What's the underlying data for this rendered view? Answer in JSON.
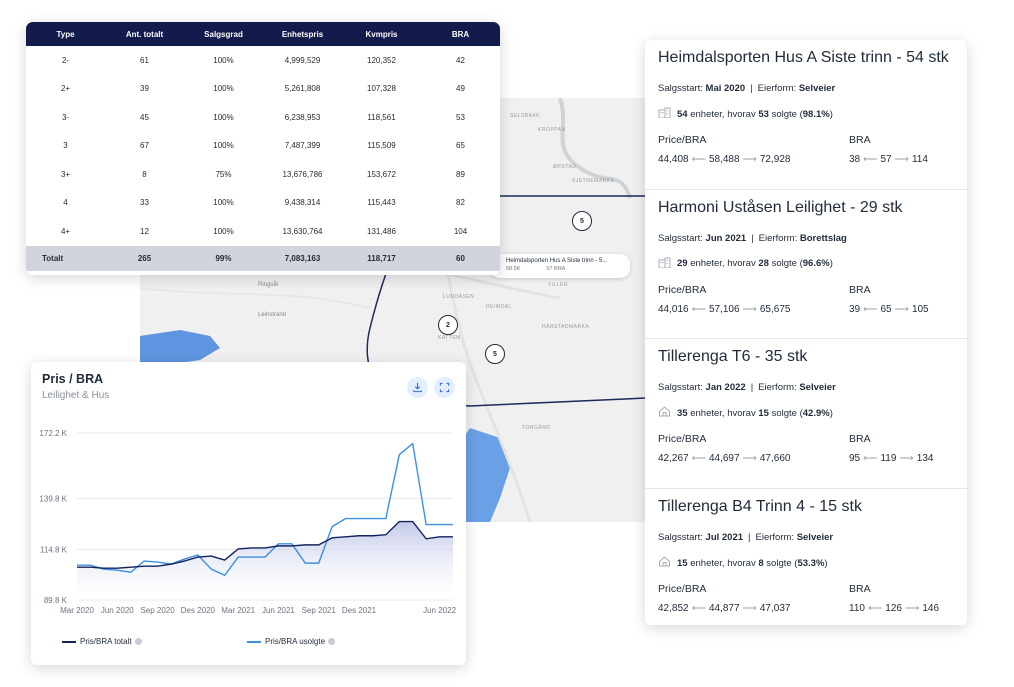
{
  "table": {
    "headers": [
      "Type",
      "Ant. totalt",
      "Salgsgrad",
      "Enhetspris",
      "Kvmpris",
      "BRA"
    ],
    "rows": [
      [
        "2-",
        "61",
        "100%",
        "4,999,529",
        "120,352",
        "42"
      ],
      [
        "2+",
        "39",
        "100%",
        "5,261,808",
        "107,328",
        "49"
      ],
      [
        "3-",
        "45",
        "100%",
        "6,238,953",
        "118,561",
        "53"
      ],
      [
        "3",
        "67",
        "100%",
        "7,487,399",
        "115,509",
        "65"
      ],
      [
        "3+",
        "8",
        "75%",
        "13,676,786",
        "153,672",
        "89"
      ],
      [
        "4",
        "33",
        "100%",
        "9,438,314",
        "115,443",
        "82"
      ],
      [
        "4+",
        "12",
        "100%",
        "13,630,764",
        "131,486",
        "104"
      ]
    ],
    "total": [
      "Totalt",
      "265",
      "99%",
      "7,083,163",
      "118,717",
      "60"
    ]
  },
  "map": {
    "labels": [
      "SELSBAKK",
      "KROPPAN",
      "ØRSTAD",
      "SJETNEMARKA",
      "LUNDÅSEN",
      "HEIMDAL",
      "TILLER",
      "HÅRSTADMARKA",
      "KATTEM",
      "TORGÅRD"
    ],
    "place_labels": [
      "Ringvål",
      "Leinstrand"
    ],
    "clusters": [
      "5",
      "2",
      "5"
    ],
    "popup": {
      "title": "Heimdalsporten Hus A Siste trinn - 5...",
      "price": "58.5K",
      "bra": "57 BRA"
    }
  },
  "chart": {
    "title": "Pris / BRA",
    "subtitle": "Leilighet & Hus",
    "legend": [
      "Pris/BRA totalt",
      "Pris/BRA usolgte"
    ],
    "colors": {
      "total": "#15235e",
      "unsold": "#3a8fe0",
      "fill_top": "#b8bfe4"
    }
  },
  "chart_data": {
    "type": "line",
    "y_ticks": [
      "172.2 K",
      "139.8 K",
      "114.8 K",
      "89.8 K"
    ],
    "y_tick_values": [
      172.2,
      139.8,
      114.8,
      89.8
    ],
    "ylim": [
      89.8,
      172.2
    ],
    "x_ticks": [
      "Mar 2020",
      "Jun 2020",
      "Sep 2020",
      "Des 2020",
      "Mar 2021",
      "Jun 2021",
      "Sep 2021",
      "Des 2021",
      "Jun 2022"
    ],
    "x": [
      "2020-03",
      "2020-04",
      "2020-05",
      "2020-06",
      "2020-07",
      "2020-08",
      "2020-09",
      "2020-10",
      "2020-11",
      "2020-12",
      "2021-01",
      "2021-02",
      "2021-03",
      "2021-04",
      "2021-05",
      "2021-06",
      "2021-07",
      "2021-08",
      "2021-09",
      "2021-10",
      "2021-11",
      "2021-12",
      "2022-01",
      "2022-02",
      "2022-03",
      "2022-04",
      "2022-05",
      "2022-06",
      "2022-07"
    ],
    "series": [
      {
        "name": "Pris/BRA totalt",
        "values": [
          106.0,
          106.0,
          105.5,
          105.5,
          106.0,
          106.5,
          106.5,
          107.5,
          109.0,
          111.0,
          111.5,
          109.5,
          115.0,
          115.5,
          115.5,
          116.5,
          116.5,
          117.0,
          117.0,
          120.5,
          121.0,
          121.5,
          121.5,
          122.0,
          128.5,
          128.5,
          120.0,
          121.0,
          121.0
        ]
      },
      {
        "name": "Pris/BRA usolgte",
        "values": [
          107.0,
          107.0,
          105.0,
          104.5,
          103.5,
          109.0,
          108.5,
          107.5,
          110.0,
          112.0,
          105.0,
          102.0,
          111.0,
          111.0,
          111.0,
          117.5,
          117.5,
          108.0,
          108.0,
          126.0,
          130.0,
          130.0,
          130.0,
          130.0,
          161.5,
          167.0,
          127.0,
          127.0,
          127.0
        ]
      }
    ]
  },
  "projects": [
    {
      "title": "Heimdalsporten Hus A Siste trinn - 54 stk",
      "salgsstart_label": "Salgsstart:",
      "salgsstart": "Mai 2020",
      "eierform_label": "Eierform:",
      "eierform": "Selveier",
      "units": "54",
      "units_text": "enheter, hvorav",
      "sold": "53",
      "sold_text": "solgte",
      "sold_pct": "98.1%",
      "price_label": "Price/BRA",
      "price_min": "44,408",
      "price_avg": "58,488",
      "price_max": "72,928",
      "bra_label": "BRA",
      "bra_min": "38",
      "bra_avg": "57",
      "bra_max": "114",
      "icon": "building-icon"
    },
    {
      "title": "Harmoni Uståsen Leilighet - 29 stk",
      "salgsstart_label": "Salgsstart:",
      "salgsstart": "Jun 2021",
      "eierform_label": "Eierform:",
      "eierform": "Borettslag",
      "units": "29",
      "units_text": "enheter, hvorav",
      "sold": "28",
      "sold_text": "solgte",
      "sold_pct": "96.6%",
      "price_label": "Price/BRA",
      "price_min": "44,016",
      "price_avg": "57,106",
      "price_max": "65,675",
      "bra_label": "BRA",
      "bra_min": "39",
      "bra_avg": "65",
      "bra_max": "105",
      "icon": "building-icon"
    },
    {
      "title": "Tillerenga T6 - 35 stk",
      "salgsstart_label": "Salgsstart:",
      "salgsstart": "Jan 2022",
      "eierform_label": "Eierform:",
      "eierform": "Selveier",
      "units": "35",
      "units_text": "enheter, hvorav",
      "sold": "15",
      "sold_text": "solgte",
      "sold_pct": "42.9%",
      "price_label": "Price/BRA",
      "price_min": "42,267",
      "price_avg": "44,697",
      "price_max": "47,660",
      "bra_label": "BRA",
      "bra_min": "95",
      "bra_avg": "119",
      "bra_max": "134",
      "icon": "house-icon"
    },
    {
      "title": "Tillerenga B4 Trinn 4 - 15 stk",
      "salgsstart_label": "Salgsstart:",
      "salgsstart": "Jul 2021",
      "eierform_label": "Eierform:",
      "eierform": "Selveier",
      "units": "15",
      "units_text": "enheter, hvorav",
      "sold": "8",
      "sold_text": "solgte",
      "sold_pct": "53.3%",
      "price_label": "Price/BRA",
      "price_min": "42,852",
      "price_avg": "44,877",
      "price_max": "47,037",
      "bra_label": "BRA",
      "bra_min": "110",
      "bra_avg": "126",
      "bra_max": "146",
      "icon": "house-icon"
    }
  ]
}
